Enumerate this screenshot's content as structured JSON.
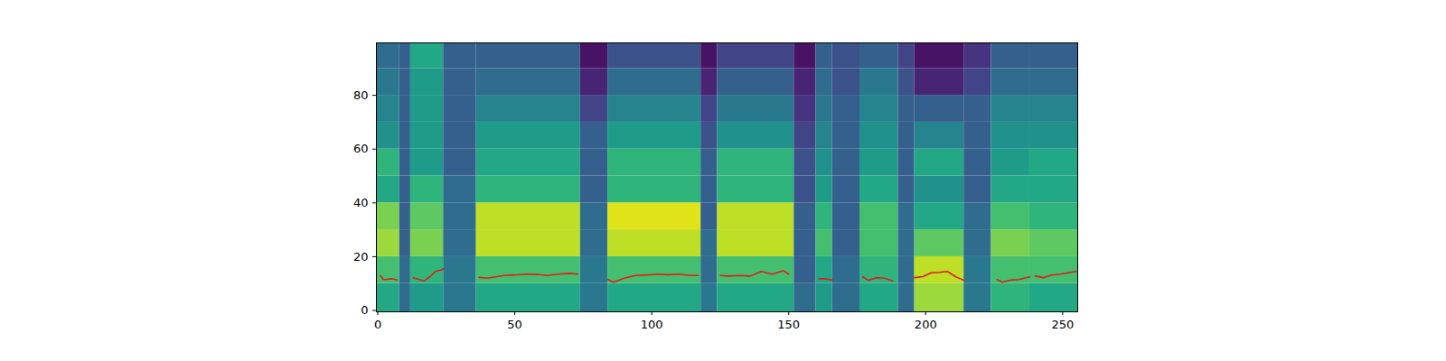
{
  "chart_data": {
    "type": "heatmap",
    "xlim": [
      -0.5,
      255.5
    ],
    "ylim": [
      -0.5,
      99.5
    ],
    "xticks": [
      0,
      50,
      100,
      150,
      200,
      250
    ],
    "yticks": [
      0,
      20,
      40,
      60,
      80
    ],
    "x_edges": [
      -0.5,
      8,
      12,
      24,
      36,
      74,
      84,
      118,
      124,
      152,
      160,
      166,
      176,
      190,
      196,
      214,
      224,
      238,
      255.5
    ],
    "y_edges": [
      -0.5,
      10,
      20,
      30,
      40,
      50,
      60,
      70,
      80,
      90,
      99.5
    ],
    "value_range": [
      0,
      1
    ],
    "cells": [
      [
        0.6,
        0.7,
        0.85,
        0.8,
        0.6,
        0.65,
        0.5,
        0.45,
        0.4,
        0.35
      ],
      [
        0.35,
        0.35,
        0.3,
        0.3,
        0.3,
        0.3,
        0.3,
        0.3,
        0.3,
        0.3
      ],
      [
        0.55,
        0.65,
        0.8,
        0.75,
        0.65,
        0.55,
        0.55,
        0.55,
        0.55,
        0.6
      ],
      [
        0.4,
        0.4,
        0.35,
        0.35,
        0.35,
        0.3,
        0.3,
        0.3,
        0.3,
        0.3
      ],
      [
        0.6,
        0.7,
        0.9,
        0.9,
        0.65,
        0.6,
        0.55,
        0.45,
        0.35,
        0.3
      ],
      [
        0.4,
        0.4,
        0.35,
        0.35,
        0.3,
        0.3,
        0.3,
        0.2,
        0.1,
        0.05
      ],
      [
        0.6,
        0.7,
        0.9,
        0.95,
        0.65,
        0.65,
        0.55,
        0.45,
        0.35,
        0.25
      ],
      [
        0.4,
        0.35,
        0.35,
        0.3,
        0.3,
        0.3,
        0.25,
        0.2,
        0.1,
        0.05
      ],
      [
        0.6,
        0.7,
        0.9,
        0.9,
        0.65,
        0.65,
        0.5,
        0.4,
        0.3,
        0.2
      ],
      [
        0.35,
        0.3,
        0.3,
        0.3,
        0.25,
        0.25,
        0.2,
        0.15,
        0.1,
        0.05
      ],
      [
        0.55,
        0.6,
        0.7,
        0.65,
        0.55,
        0.5,
        0.45,
        0.4,
        0.35,
        0.3
      ],
      [
        0.35,
        0.35,
        0.3,
        0.3,
        0.3,
        0.3,
        0.3,
        0.3,
        0.25,
        0.25
      ],
      [
        0.6,
        0.65,
        0.7,
        0.7,
        0.6,
        0.55,
        0.5,
        0.45,
        0.4,
        0.3
      ],
      [
        0.35,
        0.35,
        0.35,
        0.35,
        0.3,
        0.3,
        0.3,
        0.3,
        0.25,
        0.2
      ],
      [
        0.85,
        0.9,
        0.75,
        0.6,
        0.5,
        0.6,
        0.45,
        0.3,
        0.1,
        0.05
      ],
      [
        0.4,
        0.4,
        0.35,
        0.35,
        0.3,
        0.3,
        0.3,
        0.3,
        0.2,
        0.15
      ],
      [
        0.65,
        0.7,
        0.8,
        0.7,
        0.6,
        0.55,
        0.5,
        0.45,
        0.35,
        0.3
      ],
      [
        0.6,
        0.7,
        0.75,
        0.65,
        0.6,
        0.6,
        0.5,
        0.45,
        0.35,
        0.3
      ]
    ],
    "series": [
      {
        "type": "line",
        "color": "#e41a1c",
        "x": [
          1,
          2,
          3,
          5,
          7,
          9,
          13,
          15,
          17,
          19,
          21,
          23,
          24,
          30,
          37,
          40,
          43,
          46,
          50,
          54,
          58,
          62,
          66,
          70,
          73,
          78,
          84,
          86,
          90,
          94,
          98,
          102,
          106,
          110,
          114,
          117,
          120,
          125,
          128,
          132,
          136,
          140,
          144,
          148,
          150,
          155,
          161,
          163,
          166,
          170,
          177,
          179,
          182,
          185,
          188,
          192,
          196,
          199,
          202,
          205,
          208,
          211,
          214,
          220,
          226,
          228,
          231,
          234,
          238,
          239,
          240,
          243,
          246,
          249,
          252,
          255
        ],
        "values": [
          13,
          11.5,
          11.5,
          11.8,
          11.3,
          null,
          12.2,
          11.5,
          11,
          12.5,
          14.5,
          15,
          15.5,
          null,
          12.3,
          12,
          12.5,
          13,
          13.2,
          13.5,
          13.4,
          13,
          13.5,
          13.8,
          13.5,
          null,
          11.5,
          10.5,
          12,
          13,
          13.2,
          13.5,
          13.3,
          13.5,
          13,
          13,
          null,
          13,
          12.8,
          13,
          12.8,
          14.5,
          13.5,
          14.8,
          13.5,
          null,
          11.8,
          11.8,
          11.3,
          null,
          12.5,
          11.2,
          12.2,
          12,
          11,
          null,
          12.2,
          12.6,
          14,
          14.2,
          14.5,
          12.5,
          11.2,
          null,
          11.5,
          10.5,
          11.3,
          11.5,
          12.5,
          null,
          12.8,
          12.2,
          13.2,
          13.5,
          14,
          14.5
        ]
      }
    ]
  }
}
